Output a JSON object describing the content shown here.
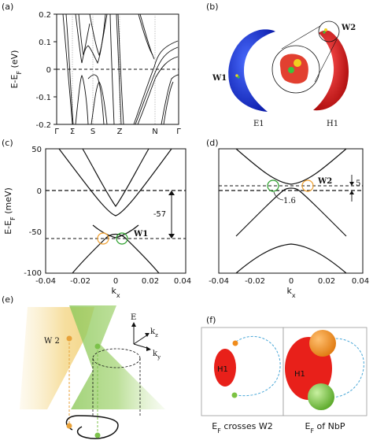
{
  "panels": {
    "a": "(a)",
    "b": "(b)",
    "c": "(c)",
    "d": "(d)",
    "e": "(e)",
    "f": "(f)"
  },
  "panel_a": {
    "ylabel": "E-E",
    "ylabel_sub": "F",
    "ylabel_unit": " (eV)",
    "yticks": [
      "0.2",
      "0.1",
      "0",
      "-0.1",
      "-0.2"
    ],
    "kpoints": [
      "Γ",
      "Σ",
      "S",
      "Z",
      "N",
      "Γ"
    ]
  },
  "panel_b": {
    "w1": "W1",
    "w2": "W2",
    "e1": "E1",
    "h1": "H1",
    "colors": {
      "electron": "#1a2fd6",
      "hole": "#d81818",
      "zoom_yellow": "#f0d020",
      "zoom_green": "#3cc43c"
    }
  },
  "panel_c": {
    "ylabel": "E-E",
    "ylabel_sub": "F",
    "ylabel_unit": " (meV)",
    "xlabel": "k",
    "xlabel_sub": "x",
    "yticks": [
      "50",
      "0",
      "-50",
      "-100"
    ],
    "xticks": [
      "-0.04",
      "-0.02",
      "0",
      "0.02",
      "0.04"
    ],
    "arrow_label": "-57",
    "w1": "W1"
  },
  "panel_d": {
    "xlabel": "k",
    "xlabel_sub": "x",
    "xticks": [
      "-0.04",
      "-0.02",
      "0",
      "0.02",
      "0.04"
    ],
    "w2": "W2",
    "gap_label": "1.6",
    "arrow_label": "5"
  },
  "panel_e": {
    "w2": "W 2",
    "axis_e": "E",
    "axis_kz": "k",
    "axis_kz_sub": "z",
    "axis_ky": "k",
    "axis_ky_sub": "y",
    "colors": {
      "orange": "#e8a23a",
      "green": "#7cc24a"
    }
  },
  "panel_f": {
    "left_h1": "H1",
    "right_h1": "H1",
    "left_caption": "E",
    "left_caption_sub": "F",
    "left_caption_rest": " crosses W2",
    "right_caption": "E",
    "right_caption_sub": "F",
    "right_caption_rest": " of NbP",
    "colors": {
      "pocket": "#e8201a",
      "orange": "#f08c1c",
      "green": "#7cc242",
      "loop": "#4aa8d8"
    }
  },
  "chart_data": [
    {
      "type": "line",
      "panel": "a",
      "ylabel": "E-EF (eV)",
      "ylim": [
        -0.2,
        0.2
      ],
      "yticks": [
        0.2,
        0.1,
        0,
        -0.1,
        -0.2
      ],
      "xticks": [
        "Γ",
        "Σ",
        "S",
        "Z",
        "N",
        "Γ"
      ]
    },
    {
      "type": "line",
      "panel": "c",
      "xlabel": "kx",
      "ylabel": "E-EF (meV)",
      "xlim": [
        -0.04,
        0.04
      ],
      "ylim": [
        -100,
        50
      ],
      "annotations": [
        "-57",
        "W1"
      ]
    },
    {
      "type": "line",
      "panel": "d",
      "xlabel": "kx",
      "xlim": [
        -0.04,
        0.04
      ],
      "annotations": [
        "W2",
        "1.6",
        "5"
      ]
    }
  ]
}
